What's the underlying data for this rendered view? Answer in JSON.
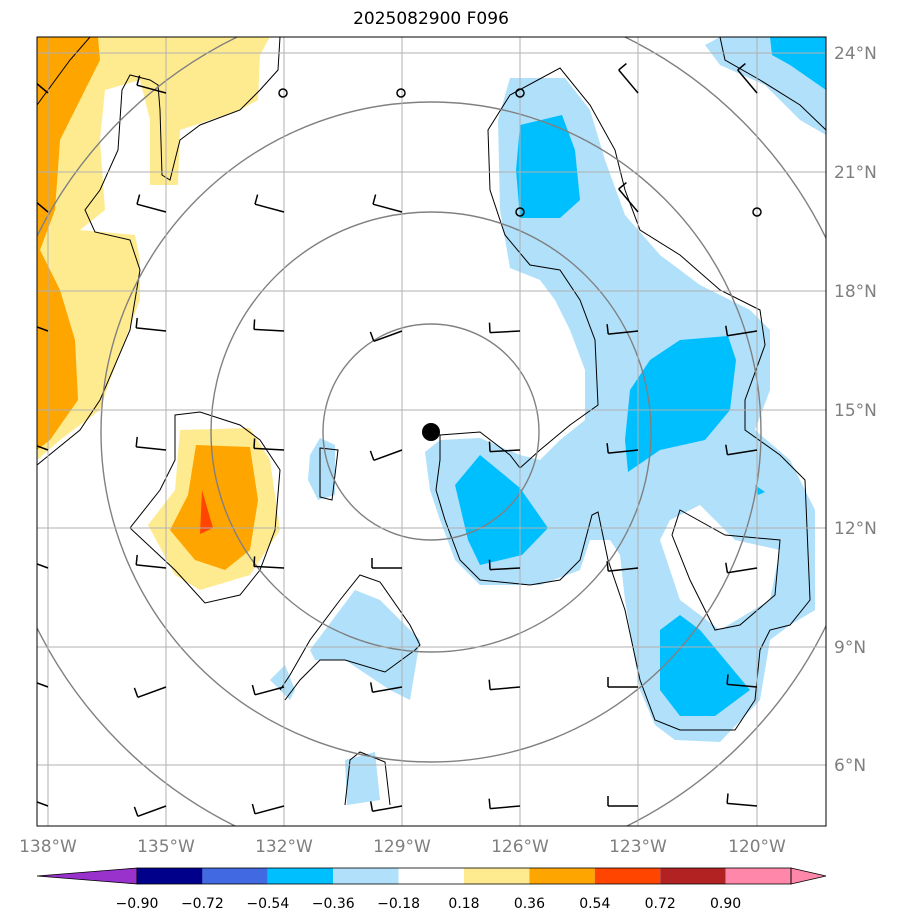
{
  "title": "2025082900 F096",
  "map": {
    "lon_ticks": [
      "138°W",
      "135°W",
      "132°W",
      "129°W",
      "126°W",
      "123°W",
      "120°W"
    ],
    "lat_ticks": [
      "24°N",
      "21°N",
      "18°N",
      "15°N",
      "12°N",
      "9°N",
      "6°N"
    ],
    "center_marker": {
      "lon": -128.3,
      "lat": 14.5
    },
    "range_rings": 4,
    "calm_circle_points": [
      {
        "lon": -132,
        "lat": 22.9
      },
      {
        "lon": -129,
        "lat": 22.9
      },
      {
        "lon": -126,
        "lat": 22.9
      },
      {
        "lon": -126,
        "lat": 19.9
      },
      {
        "lon": -120,
        "lat": 19.9
      }
    ]
  },
  "colorbar": {
    "labels": [
      "−0.90",
      "−0.72",
      "−0.54",
      "−0.36",
      "−0.18",
      "0.18",
      "0.36",
      "0.54",
      "0.72",
      "0.90"
    ],
    "colors": [
      "#9932cc",
      "#00008b",
      "#4169e1",
      "#00bfff",
      "#b0e0fa",
      "#ffffff",
      "#ffeb8f",
      "#ffa500",
      "#ff4500",
      "#b22222",
      "#ff88aa"
    ]
  }
}
